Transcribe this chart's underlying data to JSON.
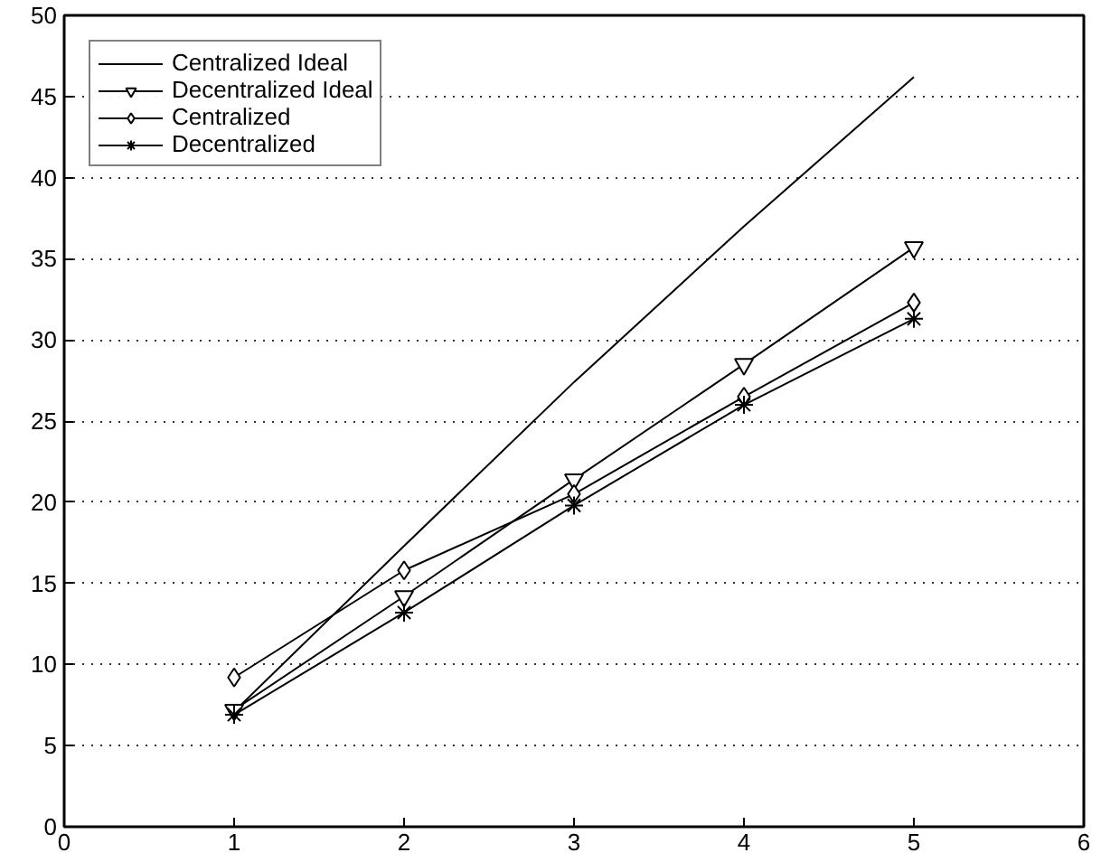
{
  "chart_data": {
    "type": "line",
    "x": [
      1,
      2,
      3,
      4,
      5
    ],
    "series": [
      {
        "name": "Centralized Ideal",
        "color": "#000000",
        "marker": "none",
        "values": [
          7.1,
          17.3,
          27.4,
          37.0,
          46.2
        ]
      },
      {
        "name": "Decentralized Ideal",
        "color": "#000000",
        "marker": "triangle",
        "values": [
          7.2,
          14.2,
          21.4,
          28.5,
          35.7
        ]
      },
      {
        "name": "Centralized",
        "color": "#000000",
        "marker": "diamond",
        "values": [
          9.2,
          15.8,
          20.5,
          26.5,
          32.3
        ]
      },
      {
        "name": "Decentralized",
        "color": "#000000",
        "marker": "cross",
        "values": [
          6.9,
          13.2,
          19.8,
          26.0,
          31.3
        ]
      }
    ],
    "xlim": [
      0,
      6
    ],
    "ylim": [
      0,
      50
    ],
    "xticks": [
      0,
      1,
      2,
      3,
      4,
      5,
      6
    ],
    "yticks": [
      0,
      5,
      10,
      15,
      20,
      25,
      30,
      35,
      40,
      45,
      50
    ],
    "grid": "y",
    "legend": "top left",
    "line_style": "solid"
  }
}
